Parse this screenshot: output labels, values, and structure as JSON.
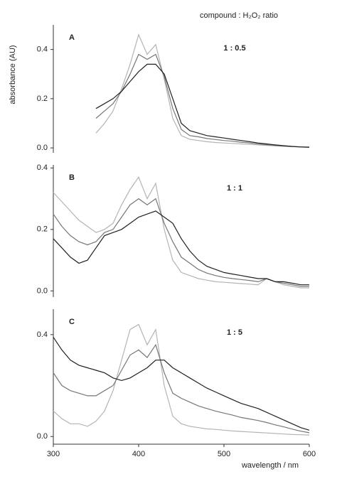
{
  "chart_data": [
    {
      "type": "line",
      "title": "compound : H₂O₂ ratio",
      "ylabel": "absorbance (AU)",
      "label": "A",
      "annotation": "1 : 0.5",
      "x": [
        350,
        360,
        370,
        380,
        390,
        400,
        410,
        420,
        430,
        440,
        450,
        460,
        470,
        480,
        490,
        500,
        510,
        520,
        530,
        540,
        550,
        560,
        570,
        580,
        590,
        600
      ],
      "series": [
        {
          "color": "#b4b4b4",
          "values": [
            0.06,
            0.1,
            0.15,
            0.24,
            0.34,
            0.46,
            0.38,
            0.42,
            0.28,
            0.12,
            0.05,
            0.035,
            0.03,
            0.025,
            0.022,
            0.02,
            0.018,
            0.016,
            0.014,
            0.012,
            0.01,
            0.008,
            0.006,
            0.005,
            0.003,
            0.002
          ]
        },
        {
          "color": "#767676",
          "values": [
            0.12,
            0.15,
            0.18,
            0.23,
            0.3,
            0.38,
            0.36,
            0.38,
            0.29,
            0.16,
            0.075,
            0.05,
            0.045,
            0.038,
            0.034,
            0.03,
            0.027,
            0.023,
            0.02,
            0.016,
            0.013,
            0.01,
            0.008,
            0.005,
            0.004,
            0.002
          ]
        },
        {
          "color": "#202020",
          "values": [
            0.16,
            0.18,
            0.2,
            0.23,
            0.27,
            0.31,
            0.34,
            0.34,
            0.3,
            0.2,
            0.1,
            0.07,
            0.06,
            0.05,
            0.045,
            0.04,
            0.035,
            0.03,
            0.025,
            0.02,
            0.016,
            0.012,
            0.009,
            0.006,
            0.004,
            0.003
          ]
        }
      ],
      "xlim": [
        300,
        600
      ],
      "ylim": [
        -0.02,
        0.5
      ],
      "yticks": [
        {
          "value": 0,
          "label": "0.0"
        },
        0.2,
        0.4
      ]
    },
    {
      "type": "line",
      "label": "B",
      "annotation": "1 : 1",
      "x": [
        300,
        310,
        320,
        330,
        340,
        350,
        360,
        370,
        380,
        390,
        400,
        410,
        420,
        430,
        440,
        450,
        460,
        470,
        480,
        490,
        500,
        510,
        520,
        530,
        540,
        550,
        560,
        570,
        580,
        590,
        600
      ],
      "series": [
        {
          "color": "#b4b4b4",
          "values": [
            0.32,
            0.29,
            0.26,
            0.23,
            0.21,
            0.19,
            0.2,
            0.22,
            0.28,
            0.33,
            0.37,
            0.3,
            0.35,
            0.2,
            0.1,
            0.06,
            0.05,
            0.04,
            0.035,
            0.03,
            0.028,
            0.026,
            0.024,
            0.022,
            0.02,
            0.04,
            0.03,
            0.02,
            0.015,
            0.01,
            0.01
          ]
        },
        {
          "color": "#767676",
          "values": [
            0.25,
            0.21,
            0.18,
            0.16,
            0.15,
            0.16,
            0.19,
            0.2,
            0.24,
            0.28,
            0.3,
            0.28,
            0.3,
            0.22,
            0.16,
            0.11,
            0.09,
            0.07,
            0.058,
            0.05,
            0.044,
            0.04,
            0.037,
            0.034,
            0.03,
            0.04,
            0.03,
            0.025,
            0.02,
            0.015,
            0.015
          ]
        },
        {
          "color": "#202020",
          "values": [
            0.17,
            0.14,
            0.11,
            0.09,
            0.1,
            0.14,
            0.18,
            0.19,
            0.2,
            0.22,
            0.24,
            0.25,
            0.26,
            0.24,
            0.22,
            0.17,
            0.13,
            0.1,
            0.08,
            0.07,
            0.06,
            0.055,
            0.05,
            0.045,
            0.04,
            0.04,
            0.03,
            0.03,
            0.025,
            0.02,
            0.02
          ]
        }
      ],
      "xlim": [
        300,
        600
      ],
      "ylim": [
        -0.02,
        0.41
      ],
      "yticks": [
        {
          "value": 0,
          "label": "0.0"
        },
        0.2,
        0.4
      ]
    },
    {
      "type": "line",
      "label": "C",
      "annotation": "1 : 5",
      "xlabel": "wavelength / nm",
      "x": [
        300,
        310,
        320,
        330,
        340,
        350,
        360,
        370,
        380,
        390,
        400,
        410,
        420,
        430,
        440,
        450,
        460,
        470,
        480,
        490,
        500,
        510,
        520,
        530,
        540,
        550,
        560,
        570,
        580,
        590,
        600
      ],
      "series": [
        {
          "color": "#b4b4b4",
          "values": [
            0.1,
            0.07,
            0.05,
            0.05,
            0.04,
            0.06,
            0.1,
            0.18,
            0.3,
            0.42,
            0.44,
            0.36,
            0.42,
            0.2,
            0.08,
            0.05,
            0.04,
            0.035,
            0.03,
            0.028,
            0.025,
            0.022,
            0.02,
            0.018,
            0.016,
            0.014,
            0.012,
            0.01,
            0.008,
            0.007,
            0.006
          ]
        },
        {
          "color": "#767676",
          "values": [
            0.25,
            0.2,
            0.18,
            0.17,
            0.16,
            0.16,
            0.18,
            0.2,
            0.26,
            0.32,
            0.34,
            0.31,
            0.36,
            0.25,
            0.17,
            0.15,
            0.135,
            0.12,
            0.11,
            0.1,
            0.092,
            0.084,
            0.075,
            0.069,
            0.063,
            0.055,
            0.046,
            0.038,
            0.029,
            0.021,
            0.015
          ]
        },
        {
          "color": "#202020",
          "values": [
            0.39,
            0.34,
            0.3,
            0.28,
            0.27,
            0.26,
            0.25,
            0.23,
            0.22,
            0.23,
            0.25,
            0.27,
            0.3,
            0.3,
            0.27,
            0.25,
            0.23,
            0.21,
            0.19,
            0.175,
            0.16,
            0.145,
            0.13,
            0.12,
            0.11,
            0.095,
            0.08,
            0.065,
            0.05,
            0.035,
            0.025
          ]
        }
      ],
      "xlim": [
        300,
        600
      ],
      "xticks": [
        300,
        400,
        500,
        600
      ],
      "ylim": [
        -0.03,
        0.5
      ],
      "yticks": [
        {
          "value": 0,
          "label": "0.0"
        },
        0.4
      ]
    }
  ]
}
